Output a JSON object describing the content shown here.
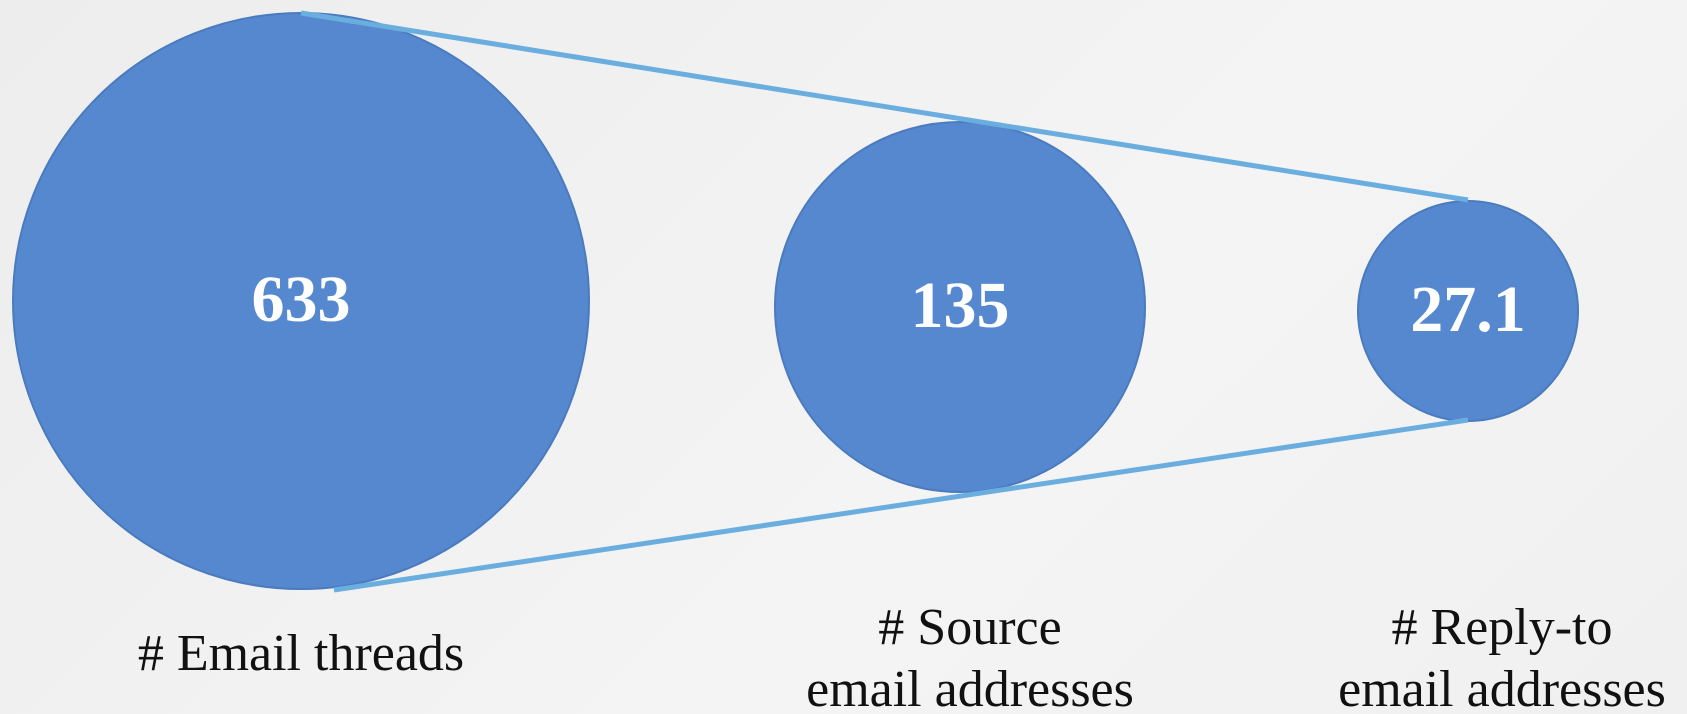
{
  "items": [
    {
      "value": 633,
      "label": [
        "# Email threads"
      ]
    },
    {
      "value": 135,
      "label": [
        "# Source",
        "email addresses"
      ]
    },
    {
      "value": 27.1,
      "label": [
        "# Reply-to",
        "email addresses"
      ]
    }
  ]
}
